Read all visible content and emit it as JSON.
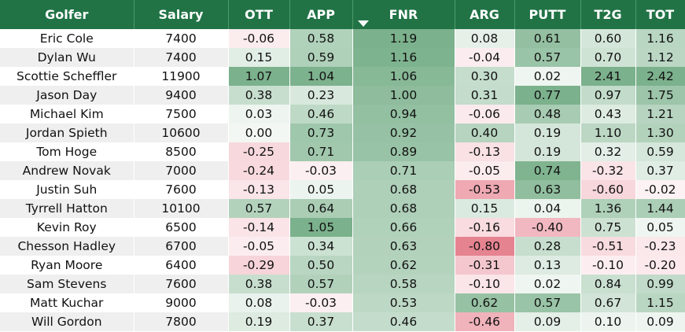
{
  "columns": [
    {
      "key": "golfer",
      "label": "Golfer"
    },
    {
      "key": "salary",
      "label": "Salary"
    },
    {
      "key": "ott",
      "label": "OTT"
    },
    {
      "key": "app",
      "label": "APP"
    },
    {
      "key": "fnr",
      "label": "FNR",
      "sorted": "desc"
    },
    {
      "key": "arg",
      "label": "ARG"
    },
    {
      "key": "putt",
      "label": "PUTT"
    },
    {
      "key": "t2g",
      "label": "T2G"
    },
    {
      "key": "tot",
      "label": "TOT"
    }
  ],
  "colors": {
    "header_bg": "#217346",
    "positive": "#5a9e6f",
    "negative": "#e07a87"
  },
  "rows": [
    {
      "golfer": "Eric Cole",
      "salary": "7400",
      "ott": "-0.06",
      "app": "0.58",
      "fnr": "1.19",
      "arg": "0.08",
      "putt": "0.61",
      "t2g": "0.60",
      "tot": "1.16"
    },
    {
      "golfer": "Dylan Wu",
      "salary": "7400",
      "ott": "0.15",
      "app": "0.59",
      "fnr": "1.16",
      "arg": "-0.04",
      "putt": "0.57",
      "t2g": "0.70",
      "tot": "1.12"
    },
    {
      "golfer": "Scottie Scheffler",
      "salary": "11900",
      "ott": "1.07",
      "app": "1.04",
      "fnr": "1.06",
      "arg": "0.30",
      "putt": "0.02",
      "t2g": "2.41",
      "tot": "2.42"
    },
    {
      "golfer": "Jason Day",
      "salary": "9400",
      "ott": "0.38",
      "app": "0.23",
      "fnr": "1.00",
      "arg": "0.31",
      "putt": "0.77",
      "t2g": "0.97",
      "tot": "1.75"
    },
    {
      "golfer": "Michael Kim",
      "salary": "7500",
      "ott": "0.03",
      "app": "0.46",
      "fnr": "0.94",
      "arg": "-0.06",
      "putt": "0.48",
      "t2g": "0.43",
      "tot": "1.21"
    },
    {
      "golfer": "Jordan Spieth",
      "salary": "10600",
      "ott": "0.00",
      "app": "0.73",
      "fnr": "0.92",
      "arg": "0.40",
      "putt": "0.19",
      "t2g": "1.10",
      "tot": "1.30"
    },
    {
      "golfer": "Tom Hoge",
      "salary": "8500",
      "ott": "-0.25",
      "app": "0.71",
      "fnr": "0.89",
      "arg": "-0.13",
      "putt": "0.19",
      "t2g": "0.32",
      "tot": "0.59"
    },
    {
      "golfer": "Andrew Novak",
      "salary": "7000",
      "ott": "-0.24",
      "app": "-0.03",
      "fnr": "0.71",
      "arg": "-0.05",
      "putt": "0.74",
      "t2g": "-0.32",
      "tot": "0.37"
    },
    {
      "golfer": "Justin Suh",
      "salary": "7600",
      "ott": "-0.13",
      "app": "0.05",
      "fnr": "0.68",
      "arg": "-0.53",
      "putt": "0.63",
      "t2g": "-0.60",
      "tot": "-0.02"
    },
    {
      "golfer": "Tyrrell Hatton",
      "salary": "10100",
      "ott": "0.57",
      "app": "0.64",
      "fnr": "0.68",
      "arg": "0.15",
      "putt": "0.04",
      "t2g": "1.36",
      "tot": "1.44"
    },
    {
      "golfer": "Kevin Roy",
      "salary": "6500",
      "ott": "-0.14",
      "app": "1.05",
      "fnr": "0.66",
      "arg": "-0.16",
      "putt": "-0.40",
      "t2g": "0.75",
      "tot": "0.05"
    },
    {
      "golfer": "Chesson Hadley",
      "salary": "6700",
      "ott": "-0.05",
      "app": "0.34",
      "fnr": "0.63",
      "arg": "-0.80",
      "putt": "0.28",
      "t2g": "-0.51",
      "tot": "-0.23"
    },
    {
      "golfer": "Ryan Moore",
      "salary": "6400",
      "ott": "-0.29",
      "app": "0.50",
      "fnr": "0.62",
      "arg": "-0.31",
      "putt": "0.13",
      "t2g": "-0.10",
      "tot": "-0.20"
    },
    {
      "golfer": "Sam Stevens",
      "salary": "7600",
      "ott": "0.38",
      "app": "0.57",
      "fnr": "0.58",
      "arg": "-0.10",
      "putt": "0.02",
      "t2g": "0.84",
      "tot": "0.99"
    },
    {
      "golfer": "Matt Kuchar",
      "salary": "9000",
      "ott": "0.08",
      "app": "-0.03",
      "fnr": "0.53",
      "arg": "0.62",
      "putt": "0.57",
      "t2g": "0.67",
      "tot": "1.15"
    },
    {
      "golfer": "Will Gordon",
      "salary": "7800",
      "ott": "0.19",
      "app": "0.37",
      "fnr": "0.46",
      "arg": "-0.46",
      "putt": "0.09",
      "t2g": "0.10",
      "tot": "0.09"
    }
  ]
}
